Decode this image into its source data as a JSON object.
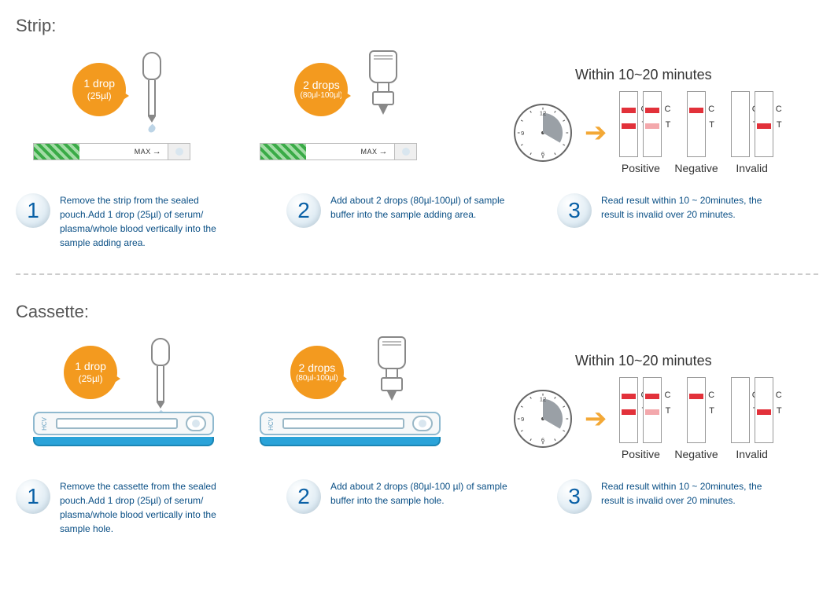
{
  "strip_section": {
    "title": "Strip:",
    "bubble1": {
      "line1": "1 drop",
      "line2": "(25µl)",
      "bg": "#f39a1f",
      "size": 68
    },
    "bubble2": {
      "line1": "2 drops",
      "line2": "(80µl-100µl)",
      "bg": "#f39a1f",
      "size": 68
    },
    "strip_label": "MAX",
    "results_title": "Within 10~20 minutes",
    "steps": [
      "Remove the strip from the sealed pouch.Add 1 drop (25µl) of serum/ plasma/whole blood vertically into the sample adding area.",
      "Add about 2 drops (80µl-100µl) of sample buffer into the sample adding area.",
      "Read result within 10 ~ 20minutes, the result is invalid over 20 minutes."
    ]
  },
  "cassette_section": {
    "title": "Cassette:",
    "bubble1": {
      "line1": "1 drop",
      "line2": "(25µl)",
      "bg": "#f39a1f",
      "size": 68
    },
    "bubble2": {
      "line1": "2 drops",
      "line2": "(80µl-100µl)",
      "bg": "#f39a1f",
      "size": 68
    },
    "cassette_label": "HCV",
    "results_title": "Within 10~20 minutes",
    "steps": [
      "Remove the cassette from the sealed pouch.Add 1 drop (25µl) of serum/ plasma/whole blood vertically into the sample hole.",
      "Add about 2 drops (80µl-100 µl) of sample buffer into the sample hole.",
      "Read result within 10 ~ 20minutes, the result is invalid over 20 minutes."
    ]
  },
  "results": {
    "labels": {
      "c": "C",
      "t": "T"
    },
    "captions": [
      "Positive",
      "Negative",
      "Invalid"
    ],
    "colors": {
      "strong": "#e2313a",
      "faint": "#f3a8ac",
      "none": "transparent"
    },
    "groups": [
      {
        "strips": [
          {
            "c": "strong",
            "t": "strong"
          },
          {
            "c": "strong",
            "t": "faint"
          }
        ],
        "caption_idx": 0
      },
      {
        "strips": [
          {
            "c": "strong",
            "t": "none"
          }
        ],
        "caption_idx": 1
      },
      {
        "strips": [
          {
            "c": "none",
            "t": "none"
          },
          {
            "c": "none",
            "t": "strong"
          }
        ],
        "caption_idx": 2
      }
    ]
  },
  "clock": {
    "numbers": [
      "12",
      "9",
      "6"
    ],
    "wedge_color": "#9aa0a6",
    "border": "#555"
  },
  "arrow_color": "#f3a836",
  "step_num_color": "#0960a6",
  "step_text_color": "#0a4f85"
}
